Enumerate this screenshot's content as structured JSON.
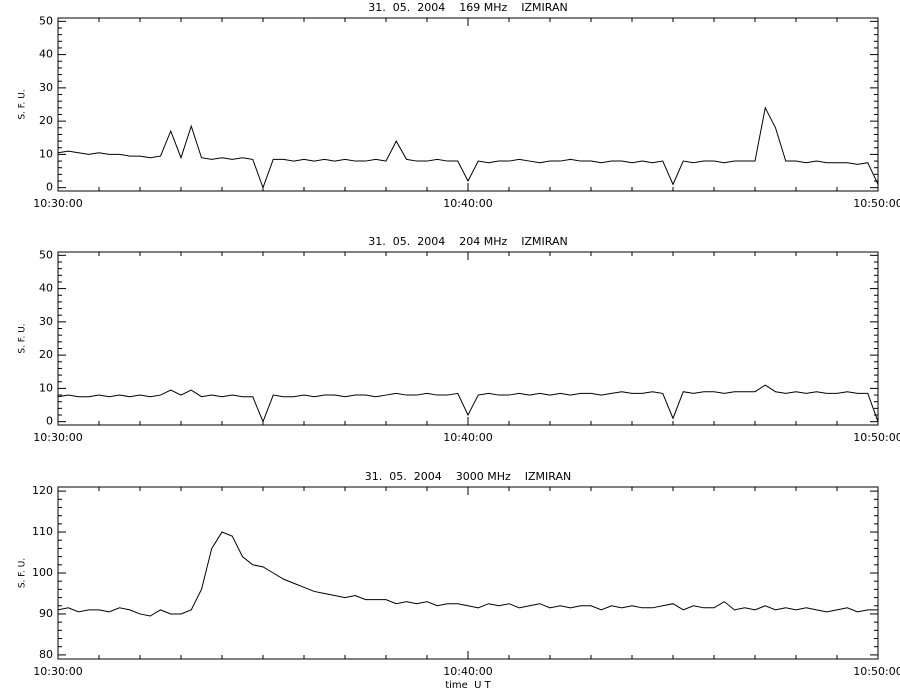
{
  "chart_data": [
    {
      "type": "line",
      "title": "31.  05.  2004    169 MHz    IZMIRAN",
      "ylabel": "S. F. U.",
      "color": "#000000",
      "x": [
        "10:30:00",
        "10:30:15",
        "10:30:30",
        "10:30:45",
        "10:31:00",
        "10:31:15",
        "10:31:30",
        "10:31:45",
        "10:32:00",
        "10:32:15",
        "10:32:30",
        "10:32:45",
        "10:33:00",
        "10:33:15",
        "10:33:30",
        "10:33:45",
        "10:34:00",
        "10:34:15",
        "10:34:30",
        "10:34:45",
        "10:35:00",
        "10:35:15",
        "10:35:30",
        "10:35:45",
        "10:36:00",
        "10:36:15",
        "10:36:30",
        "10:36:45",
        "10:37:00",
        "10:37:15",
        "10:37:30",
        "10:37:45",
        "10:38:00",
        "10:38:15",
        "10:38:30",
        "10:38:45",
        "10:39:00",
        "10:39:15",
        "10:39:30",
        "10:39:45",
        "10:40:00",
        "10:40:15",
        "10:40:30",
        "10:40:45",
        "10:41:00",
        "10:41:15",
        "10:41:30",
        "10:41:45",
        "10:42:00",
        "10:42:15",
        "10:42:30",
        "10:42:45",
        "10:43:00",
        "10:43:15",
        "10:43:30",
        "10:43:45",
        "10:44:00",
        "10:44:15",
        "10:44:30",
        "10:44:45",
        "10:45:00",
        "10:45:15",
        "10:45:30",
        "10:45:45",
        "10:46:00",
        "10:46:15",
        "10:46:30",
        "10:46:45",
        "10:47:00",
        "10:47:15",
        "10:47:30",
        "10:47:45",
        "10:48:00",
        "10:48:15",
        "10:48:30",
        "10:48:45",
        "10:49:00",
        "10:49:15",
        "10:49:30",
        "10:49:45",
        "10:50:00"
      ],
      "values": [
        10.5,
        11,
        10.5,
        10,
        10.5,
        10,
        10,
        9.5,
        9.5,
        9,
        9.5,
        17,
        9,
        18.5,
        9,
        8.5,
        9,
        8.5,
        9,
        8.5,
        0,
        8.5,
        8.5,
        8,
        8.5,
        8,
        8.5,
        8,
        8.5,
        8,
        8,
        8.5,
        8,
        14,
        8.5,
        8,
        8,
        8.5,
        8,
        8,
        2,
        8,
        7.5,
        8,
        8,
        8.5,
        8,
        7.5,
        8,
        8,
        8.5,
        8,
        8,
        7.5,
        8,
        8,
        7.5,
        8,
        7.5,
        8,
        1,
        8,
        7.5,
        8,
        8,
        7.5,
        8,
        8,
        8,
        24,
        18,
        8,
        8,
        7.5,
        8,
        7.5,
        7.5,
        7.5,
        7,
        7.5,
        1
      ],
      "xlim": [
        "10:30:00",
        "10:50:00"
      ],
      "xticks": [
        "10:30:00",
        "10:40:00",
        "10:50:00"
      ],
      "ylim": [
        -1,
        51
      ],
      "yticks": [
        0,
        10,
        20,
        30,
        40,
        50
      ]
    },
    {
      "type": "line",
      "title": "31.  05.  2004    204 MHz    IZMIRAN",
      "ylabel": "S. F. U.",
      "color": "#000000",
      "x": [
        "10:30:00",
        "10:30:15",
        "10:30:30",
        "10:30:45",
        "10:31:00",
        "10:31:15",
        "10:31:30",
        "10:31:45",
        "10:32:00",
        "10:32:15",
        "10:32:30",
        "10:32:45",
        "10:33:00",
        "10:33:15",
        "10:33:30",
        "10:33:45",
        "10:34:00",
        "10:34:15",
        "10:34:30",
        "10:34:45",
        "10:35:00",
        "10:35:15",
        "10:35:30",
        "10:35:45",
        "10:36:00",
        "10:36:15",
        "10:36:30",
        "10:36:45",
        "10:37:00",
        "10:37:15",
        "10:37:30",
        "10:37:45",
        "10:38:00",
        "10:38:15",
        "10:38:30",
        "10:38:45",
        "10:39:00",
        "10:39:15",
        "10:39:30",
        "10:39:45",
        "10:40:00",
        "10:40:15",
        "10:40:30",
        "10:40:45",
        "10:41:00",
        "10:41:15",
        "10:41:30",
        "10:41:45",
        "10:42:00",
        "10:42:15",
        "10:42:30",
        "10:42:45",
        "10:43:00",
        "10:43:15",
        "10:43:30",
        "10:43:45",
        "10:44:00",
        "10:44:15",
        "10:44:30",
        "10:44:45",
        "10:45:00",
        "10:45:15",
        "10:45:30",
        "10:45:45",
        "10:46:00",
        "10:46:15",
        "10:46:30",
        "10:46:45",
        "10:47:00",
        "10:47:15",
        "10:47:30",
        "10:47:45",
        "10:48:00",
        "10:48:15",
        "10:48:30",
        "10:48:45",
        "10:49:00",
        "10:49:15",
        "10:49:30",
        "10:49:45",
        "10:50:00"
      ],
      "values": [
        7.5,
        8,
        7.5,
        7.5,
        8,
        7.5,
        8,
        7.5,
        8,
        7.5,
        8,
        9.5,
        8,
        9.5,
        7.5,
        8,
        7.5,
        8,
        7.5,
        7.5,
        0,
        8,
        7.5,
        7.5,
        8,
        7.5,
        8,
        8,
        7.5,
        8,
        8,
        7.5,
        8,
        8.5,
        8,
        8,
        8.5,
        8,
        8,
        8.5,
        2,
        8,
        8.5,
        8,
        8,
        8.5,
        8,
        8.5,
        8,
        8.5,
        8,
        8.5,
        8.5,
        8,
        8.5,
        9,
        8.5,
        8.5,
        9,
        8.5,
        1,
        9,
        8.5,
        9,
        9,
        8.5,
        9,
        9,
        9,
        11,
        9,
        8.5,
        9,
        8.5,
        9,
        8.5,
        8.5,
        9,
        8.5,
        8.5,
        0
      ],
      "xlim": [
        "10:30:00",
        "10:50:00"
      ],
      "xticks": [
        "10:30:00",
        "10:40:00",
        "10:50:00"
      ],
      "ylim": [
        -1,
        51
      ],
      "yticks": [
        0,
        10,
        20,
        30,
        40,
        50
      ]
    },
    {
      "type": "line",
      "title": "31.  05.  2004    3000 MHz    IZMIRAN",
      "ylabel": "S. F. U.",
      "xlabel": "time  U T",
      "color": "#000000",
      "x": [
        "10:30:00",
        "10:30:15",
        "10:30:30",
        "10:30:45",
        "10:31:00",
        "10:31:15",
        "10:31:30",
        "10:31:45",
        "10:32:00",
        "10:32:15",
        "10:32:30",
        "10:32:45",
        "10:33:00",
        "10:33:15",
        "10:33:30",
        "10:33:45",
        "10:34:00",
        "10:34:15",
        "10:34:30",
        "10:34:45",
        "10:35:00",
        "10:35:15",
        "10:35:30",
        "10:35:45",
        "10:36:00",
        "10:36:15",
        "10:36:30",
        "10:36:45",
        "10:37:00",
        "10:37:15",
        "10:37:30",
        "10:37:45",
        "10:38:00",
        "10:38:15",
        "10:38:30",
        "10:38:45",
        "10:39:00",
        "10:39:15",
        "10:39:30",
        "10:39:45",
        "10:40:00",
        "10:40:15",
        "10:40:30",
        "10:40:45",
        "10:41:00",
        "10:41:15",
        "10:41:30",
        "10:41:45",
        "10:42:00",
        "10:42:15",
        "10:42:30",
        "10:42:45",
        "10:43:00",
        "10:43:15",
        "10:43:30",
        "10:43:45",
        "10:44:00",
        "10:44:15",
        "10:44:30",
        "10:44:45",
        "10:45:00",
        "10:45:15",
        "10:45:30",
        "10:45:45",
        "10:46:00",
        "10:46:15",
        "10:46:30",
        "10:46:45",
        "10:47:00",
        "10:47:15",
        "10:47:30",
        "10:47:45",
        "10:48:00",
        "10:48:15",
        "10:48:30",
        "10:48:45",
        "10:49:00",
        "10:49:15",
        "10:49:30",
        "10:49:45",
        "10:50:00"
      ],
      "values": [
        91,
        91.5,
        90.5,
        91,
        91,
        90.5,
        91.5,
        91,
        90,
        89.5,
        91,
        90,
        90,
        91,
        96,
        106,
        110,
        109,
        104,
        102,
        101.5,
        100,
        98.5,
        97.5,
        96.5,
        95.5,
        95,
        94.5,
        94,
        94.5,
        93.5,
        93.5,
        93.5,
        92.5,
        93,
        92.5,
        93,
        92,
        92.5,
        92.5,
        92,
        91.5,
        92.5,
        92,
        92.5,
        91.5,
        92,
        92.5,
        91.5,
        92,
        91.5,
        92,
        92,
        91,
        92,
        91.5,
        92,
        91.5,
        91.5,
        92,
        92.5,
        91,
        92,
        91.5,
        91.5,
        93,
        91,
        91.5,
        91,
        92,
        91,
        91.5,
        91,
        91.5,
        91,
        90.5,
        91,
        91.5,
        90.5,
        91,
        91
      ],
      "xlim": [
        "10:30:00",
        "10:50:00"
      ],
      "xticks": [
        "10:30:00",
        "10:40:00",
        "10:50:00"
      ],
      "ylim": [
        79,
        121
      ],
      "yticks": [
        80,
        90,
        100,
        110,
        120
      ]
    }
  ]
}
